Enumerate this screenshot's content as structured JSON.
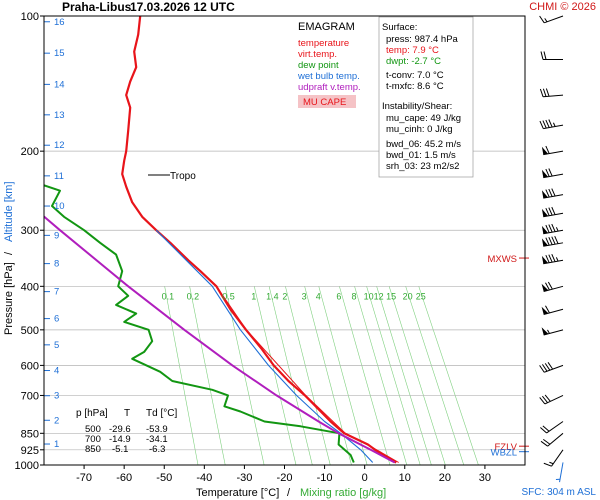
{
  "header": {
    "station": "Praha-Libus",
    "datetime": "17.03.2026 12 UTC",
    "credit": "CHMI © 2026"
  },
  "chart_data": {
    "type": "line",
    "title": "EMAGRAM",
    "xlabel_temp": "Temperature [°C]",
    "xlabel_sep": "/",
    "xlabel_mix": "Mixing ratio [g/kg]",
    "ylabel_pressure": "Pressure [hPa]",
    "ylabel_sep": "/",
    "ylabel_alt": "Altitude [km]",
    "xlim": [
      -80,
      40
    ],
    "ylim": [
      1000,
      100
    ],
    "y_scale": "log",
    "temp_ticks": [
      -70,
      -60,
      -50,
      -40,
      -30,
      -20,
      -10,
      0,
      10,
      20,
      30
    ],
    "pressure_ticks": [
      100,
      200,
      300,
      400,
      500,
      600,
      700,
      850,
      925,
      1000
    ],
    "altitude_ticks": [
      {
        "km": "1",
        "p": 898
      },
      {
        "km": "2",
        "p": 795
      },
      {
        "km": "3",
        "p": 701
      },
      {
        "km": "4",
        "p": 616
      },
      {
        "km": "5",
        "p": 540
      },
      {
        "km": "6",
        "p": 472
      },
      {
        "km": "7",
        "p": 411
      },
      {
        "km": "8",
        "p": 356
      },
      {
        "km": "9",
        "p": 308
      },
      {
        "km": "10",
        "p": 265
      },
      {
        "km": "11",
        "p": 227
      },
      {
        "km": "12",
        "p": 194
      },
      {
        "km": "13",
        "p": 166
      },
      {
        "km": "14",
        "p": 142
      },
      {
        "km": "15",
        "p": 121
      },
      {
        "km": "16",
        "p": 103
      }
    ],
    "mixing_ratio_labels": [
      "0.1",
      "0.2",
      "0.5",
      "1",
      "1.4",
      "2",
      "3",
      "4",
      "6",
      "8",
      "10",
      "12",
      "15",
      "20",
      "25"
    ],
    "mixing_ratio_label_p": 400,
    "legend": [
      {
        "name": "temperature",
        "color": "#e8141a"
      },
      {
        "name": "virt.temp.",
        "color": "#e8141a"
      },
      {
        "name": "dew point",
        "color": "#129612"
      },
      {
        "name": "wet bulb temp.",
        "color": "#1e6fd6"
      },
      {
        "name": "udpraft v.temp.",
        "color": "#b01ebd"
      }
    ],
    "mu_cape_label": "MU CAPE",
    "series": [
      {
        "name": "temperature",
        "color": "#e8141a",
        "points": [
          {
            "p": 987.4,
            "t": 7.9
          },
          {
            "p": 950,
            "t": 4.6
          },
          {
            "p": 925,
            "t": 2.6
          },
          {
            "p": 900,
            "t": 0.8
          },
          {
            "p": 850,
            "t": -5.1
          },
          {
            "p": 800,
            "t": -8.5
          },
          {
            "p": 700,
            "t": -14.9
          },
          {
            "p": 650,
            "t": -19.0
          },
          {
            "p": 600,
            "t": -22.7
          },
          {
            "p": 550,
            "t": -25.8
          },
          {
            "p": 500,
            "t": -29.6
          },
          {
            "p": 450,
            "t": -33.5
          },
          {
            "p": 400,
            "t": -37.0
          },
          {
            "p": 370,
            "t": -41.0
          },
          {
            "p": 350,
            "t": -44.0
          },
          {
            "p": 320,
            "t": -48.5
          },
          {
            "p": 300,
            "t": -52.0
          },
          {
            "p": 280,
            "t": -55.5
          },
          {
            "p": 260,
            "t": -58.0
          },
          {
            "p": 240,
            "t": -59.5
          },
          {
            "p": 225,
            "t": -60.5
          },
          {
            "p": 210,
            "t": -60.0
          },
          {
            "p": 200,
            "t": -59.5
          },
          {
            "p": 180,
            "t": -59.0
          },
          {
            "p": 160,
            "t": -58.5
          },
          {
            "p": 150,
            "t": -59.5
          },
          {
            "p": 140,
            "t": -58.5
          },
          {
            "p": 130,
            "t": -57.0
          },
          {
            "p": 120,
            "t": -57.5
          },
          {
            "p": 110,
            "t": -56.5
          },
          {
            "p": 100,
            "t": -56.0
          }
        ]
      },
      {
        "name": "virt.temp.",
        "color": "#e8141a",
        "points": [
          {
            "p": 987.4,
            "t": 8.5
          },
          {
            "p": 925,
            "t": 3.0
          },
          {
            "p": 850,
            "t": -4.8
          },
          {
            "p": 700,
            "t": -14.7
          },
          {
            "p": 500,
            "t": -29.5
          },
          {
            "p": 400,
            "t": -37.0
          },
          {
            "p": 300,
            "t": -52.0
          }
        ]
      },
      {
        "name": "dew point",
        "color": "#129612",
        "points": [
          {
            "p": 987.4,
            "t": -2.7
          },
          {
            "p": 950,
            "t": -3.5
          },
          {
            "p": 925,
            "t": -5.0
          },
          {
            "p": 900,
            "t": -6.5
          },
          {
            "p": 850,
            "t": -6.3
          },
          {
            "p": 820,
            "t": -16.0
          },
          {
            "p": 800,
            "t": -25.0
          },
          {
            "p": 760,
            "t": -31.0
          },
          {
            "p": 740,
            "t": -35.0
          },
          {
            "p": 700,
            "t": -34.1
          },
          {
            "p": 680,
            "t": -38.0
          },
          {
            "p": 650,
            "t": -48.0
          },
          {
            "p": 620,
            "t": -51.0
          },
          {
            "p": 580,
            "t": -58.0
          },
          {
            "p": 560,
            "t": -55.0
          },
          {
            "p": 530,
            "t": -53.0
          },
          {
            "p": 500,
            "t": -53.9
          },
          {
            "p": 480,
            "t": -60.0
          },
          {
            "p": 460,
            "t": -57.0
          },
          {
            "p": 440,
            "t": -62.0
          },
          {
            "p": 420,
            "t": -59.0
          },
          {
            "p": 400,
            "t": -61.5
          },
          {
            "p": 370,
            "t": -60.5
          },
          {
            "p": 340,
            "t": -62.0
          },
          {
            "p": 320,
            "t": -66.0
          },
          {
            "p": 300,
            "t": -70.0
          },
          {
            "p": 280,
            "t": -75.0
          },
          {
            "p": 265,
            "t": -78.0
          },
          {
            "p": 245,
            "t": -76.0
          },
          {
            "p": 235,
            "t": -82.0
          }
        ]
      },
      {
        "name": "wet bulb temp.",
        "color": "#1e6fd6",
        "points": [
          {
            "p": 987.4,
            "t": 2.0
          },
          {
            "p": 925,
            "t": -1.0
          },
          {
            "p": 850,
            "t": -6.0
          },
          {
            "p": 800,
            "t": -10.0
          },
          {
            "p": 700,
            "t": -17.0
          },
          {
            "p": 600,
            "t": -24.0
          },
          {
            "p": 500,
            "t": -31.0
          },
          {
            "p": 400,
            "t": -38.0
          },
          {
            "p": 350,
            "t": -44.5
          },
          {
            "p": 300,
            "t": -52.0
          }
        ]
      },
      {
        "name": "udpraft v.temp.",
        "color": "#b01ebd",
        "points": [
          {
            "p": 987.4,
            "t": 7.5
          },
          {
            "p": 925,
            "t": 1.5
          },
          {
            "p": 850,
            "t": -6.5
          },
          {
            "p": 800,
            "t": -11.5
          },
          {
            "p": 700,
            "t": -22.0
          },
          {
            "p": 600,
            "t": -33.0
          },
          {
            "p": 500,
            "t": -45.0
          },
          {
            "p": 400,
            "t": -59.0
          },
          {
            "p": 300,
            "t": -76.0
          },
          {
            "p": 270,
            "t": -82.0
          }
        ]
      }
    ],
    "tropopause": {
      "label": "Tropo",
      "p": 226
    },
    "markers": [
      {
        "label": "MXWS",
        "p": 346,
        "color": "#d01818"
      },
      {
        "label": "FZLV",
        "p": 908,
        "color": "#d01818"
      },
      {
        "label": "WBZL",
        "p": 934,
        "color": "#1e6fd6"
      }
    ],
    "wind_barbs": [
      {
        "p": 987,
        "dir": 190,
        "spd": 7,
        "color": "#1e6fd6"
      },
      {
        "p": 925,
        "dir": 215,
        "spd": 15
      },
      {
        "p": 850,
        "dir": 230,
        "spd": 20
      },
      {
        "p": 800,
        "dir": 235,
        "spd": 20
      },
      {
        "p": 700,
        "dir": 245,
        "spd": 30
      },
      {
        "p": 600,
        "dir": 250,
        "spd": 40
      },
      {
        "p": 500,
        "dir": 255,
        "spd": 55
      },
      {
        "p": 450,
        "dir": 255,
        "spd": 60
      },
      {
        "p": 400,
        "dir": 255,
        "spd": 70
      },
      {
        "p": 350,
        "dir": 260,
        "spd": 85
      },
      {
        "p": 320,
        "dir": 260,
        "spd": 90
      },
      {
        "p": 300,
        "dir": 260,
        "spd": 85
      },
      {
        "p": 275,
        "dir": 260,
        "spd": 80
      },
      {
        "p": 250,
        "dir": 260,
        "spd": 80
      },
      {
        "p": 225,
        "dir": 260,
        "spd": 70
      },
      {
        "p": 200,
        "dir": 260,
        "spd": 60
      },
      {
        "p": 175,
        "dir": 260,
        "spd": 45
      },
      {
        "p": 150,
        "dir": 265,
        "spd": 30
      },
      {
        "p": 125,
        "dir": 270,
        "spd": 20
      },
      {
        "p": 100,
        "dir": 250,
        "spd": 15
      }
    ],
    "table": {
      "header": {
        "p": "p [hPa]",
        "t": "T",
        "td": "Td [°C]"
      },
      "rows": [
        {
          "p": "500",
          "t": "-29.6",
          "td": "-53.9"
        },
        {
          "p": "700",
          "t": "-14.9",
          "td": "-34.1"
        },
        {
          "p": "850",
          "t": "-5.1",
          "td": "-6.3"
        }
      ]
    }
  },
  "surface": {
    "title": "Surface:",
    "press": "press: 987.4 hPa",
    "temp": "temp: 7.9 °C",
    "dwpt": "dwpt: -2.7 °C",
    "tconv": "t-conv: 7.0 °C",
    "tmxfc": "t-mxfc: 8.6 °C"
  },
  "instability": {
    "title": "Instability/Shear:",
    "mu_cape": "mu_cape: 49 J/kg",
    "mu_cinh": "mu_cinh: 0 J/kg",
    "bwd_06": "bwd_06: 45.2 m/s",
    "bwd_01": "bwd_01: 1.5 m/s",
    "srh_03": "srh_03: 23 m2/s2"
  },
  "sfc_label": "SFC: 304 m ASL"
}
